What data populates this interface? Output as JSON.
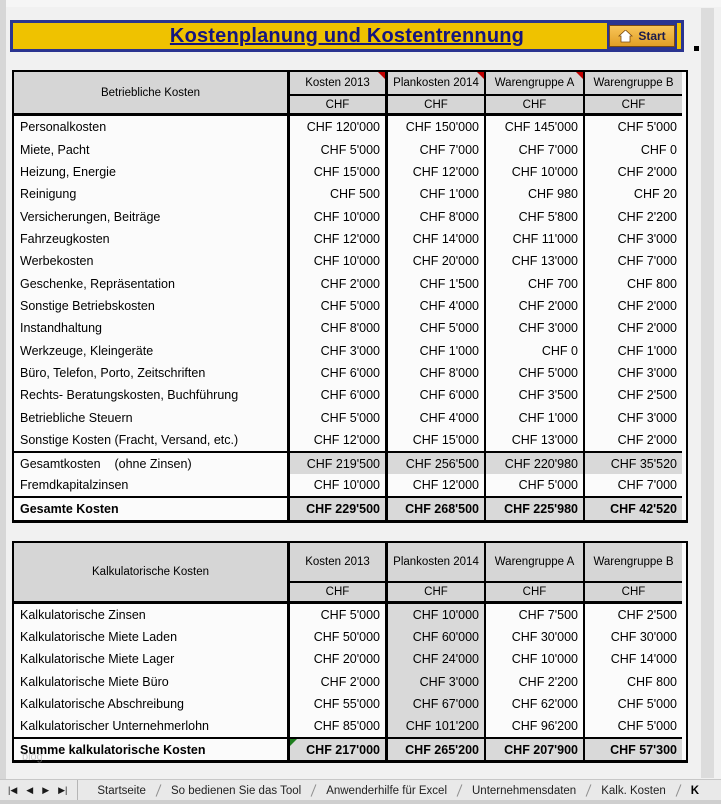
{
  "banner": {
    "title": "Kostenplanung und Kostentrennung",
    "start_label": "Start",
    "banner_color": "#efc200",
    "border_color": "#2b3590",
    "title_color": "#15157f"
  },
  "tables": [
    {
      "label_header": "Betriebliche Kosten",
      "columns": [
        "Kosten 2013",
        "Plankosten 2014",
        "Warengruppe A",
        "Warengruppe B"
      ],
      "unit": "CHF",
      "comment_cols": [
        0,
        1,
        2
      ],
      "shaded_value_col": null,
      "rows": [
        {
          "label": "Personalkosten",
          "style": "normal",
          "values": [
            "CHF 120'000",
            "CHF 150'000",
            "CHF 145'000",
            "CHF 5'000"
          ]
        },
        {
          "label": "Miete, Pacht",
          "style": "normal",
          "values": [
            "CHF 5'000",
            "CHF 7'000",
            "CHF 7'000",
            "CHF 0"
          ]
        },
        {
          "label": "Heizung, Energie",
          "style": "normal",
          "values": [
            "CHF 15'000",
            "CHF 12'000",
            "CHF 10'000",
            "CHF 2'000"
          ]
        },
        {
          "label": "Reinigung",
          "style": "normal",
          "values": [
            "CHF 500",
            "CHF 1'000",
            "CHF 980",
            "CHF 20"
          ]
        },
        {
          "label": "Versicherungen, Beiträge",
          "style": "normal",
          "values": [
            "CHF 10'000",
            "CHF 8'000",
            "CHF 5'800",
            "CHF 2'200"
          ]
        },
        {
          "label": "Fahrzeugkosten",
          "style": "normal",
          "values": [
            "CHF 12'000",
            "CHF 14'000",
            "CHF 11'000",
            "CHF 3'000"
          ]
        },
        {
          "label": "Werbekosten",
          "style": "normal",
          "values": [
            "CHF 10'000",
            "CHF 20'000",
            "CHF 13'000",
            "CHF 7'000"
          ]
        },
        {
          "label": "Geschenke, Repräsentation",
          "style": "normal",
          "values": [
            "CHF 2'000",
            "CHF 1'500",
            "CHF 700",
            "CHF 800"
          ]
        },
        {
          "label": "Sonstige Betriebskosten",
          "style": "normal",
          "values": [
            "CHF 5'000",
            "CHF 4'000",
            "CHF 2'000",
            "CHF 2'000"
          ]
        },
        {
          "label": "Instandhaltung",
          "style": "normal",
          "values": [
            "CHF 8'000",
            "CHF 5'000",
            "CHF 3'000",
            "CHF 2'000"
          ]
        },
        {
          "label": "Werkzeuge, Kleingeräte",
          "style": "normal",
          "values": [
            "CHF 3'000",
            "CHF 1'000",
            "CHF 0",
            "CHF 1'000"
          ]
        },
        {
          "label": "Büro, Telefon, Porto, Zeitschriften",
          "style": "normal",
          "values": [
            "CHF 6'000",
            "CHF 8'000",
            "CHF 5'000",
            "CHF 3'000"
          ]
        },
        {
          "label": "Rechts- Beratungskosten, Buchführung",
          "style": "normal",
          "values": [
            "CHF 6'000",
            "CHF 6'000",
            "CHF 3'500",
            "CHF 2'500"
          ]
        },
        {
          "label": "Betriebliche Steuern",
          "style": "normal",
          "values": [
            "CHF 5'000",
            "CHF 4'000",
            "CHF 1'000",
            "CHF 3'000"
          ]
        },
        {
          "label": "Sonstige Kosten (Fracht, Versand, etc.)",
          "style": "normal",
          "values": [
            "CHF 12'000",
            "CHF 15'000",
            "CHF 13'000",
            "CHF 2'000"
          ]
        },
        {
          "label": "Gesamtkosten    (ohne Zinsen)",
          "style": "subtotal",
          "values": [
            "CHF 219'500",
            "CHF 256'500",
            "CHF 220'980",
            "CHF 35'520"
          ]
        },
        {
          "label": "Fremdkapitalzinsen",
          "style": "normal",
          "values": [
            "CHF 10'000",
            "CHF 12'000",
            "CHF 5'000",
            "CHF 7'000"
          ]
        },
        {
          "label": "Gesamte Kosten",
          "style": "total",
          "values": [
            "CHF 229'500",
            "CHF 268'500",
            "CHF 225'980",
            "CHF 42'520"
          ]
        }
      ]
    },
    {
      "label_header": "Kalkulatorische Kosten",
      "columns": [
        "Kosten 2013",
        "Plankosten 2014",
        "Warengruppe A",
        "Warengruppe B"
      ],
      "unit": "CHF",
      "comment_cols": [],
      "shaded_value_col": 1,
      "rows": [
        {
          "label": "Kalkulatorische Zinsen",
          "style": "normal",
          "values": [
            "CHF 5'000",
            "CHF 10'000",
            "CHF 7'500",
            "CHF 2'500"
          ]
        },
        {
          "label": "Kalkulatorische Miete Laden",
          "style": "normal",
          "values": [
            "CHF 50'000",
            "CHF 60'000",
            "CHF 30'000",
            "CHF 30'000"
          ]
        },
        {
          "label": "Kalkulatorische Miete Lager",
          "style": "normal",
          "values": [
            "CHF 20'000",
            "CHF 24'000",
            "CHF 10'000",
            "CHF 14'000"
          ]
        },
        {
          "label": "Kalkulatorische Miete Büro",
          "style": "normal",
          "values": [
            "CHF 2'000",
            "CHF 3'000",
            "CHF 2'200",
            "CHF 800"
          ]
        },
        {
          "label": "Kalkulatorische Abschreibung",
          "style": "normal",
          "values": [
            "CHF 55'000",
            "CHF 67'000",
            "CHF 62'000",
            "CHF 5'000"
          ]
        },
        {
          "label": "Kalkulatorischer Unternehmerlohn",
          "style": "normal",
          "values": [
            "CHF 85'000",
            "CHF 101'200",
            "CHF 96'200",
            "CHF 5'000"
          ]
        },
        {
          "label": "Summe kalkulatorische Kosten",
          "style": "total",
          "green_flag_col": 0,
          "values": [
            "CHF 217'000",
            "CHF 265'200",
            "CHF 207'900",
            "CHF 57'300"
          ]
        }
      ]
    }
  ],
  "tab_bar": {
    "nav_buttons": [
      "|◀",
      "◀",
      "▶",
      "▶|"
    ],
    "tabs": [
      {
        "label": "Startseite",
        "active": false
      },
      {
        "label": "So bedienen Sie das Tool",
        "active": false
      },
      {
        "label": "Anwenderhilfe für Excel",
        "active": false
      },
      {
        "label": "Unternehmensdaten",
        "active": false
      },
      {
        "label": "Kalk. Kosten",
        "active": false
      },
      {
        "label": "K",
        "active": true
      }
    ]
  },
  "watermark": "blog"
}
